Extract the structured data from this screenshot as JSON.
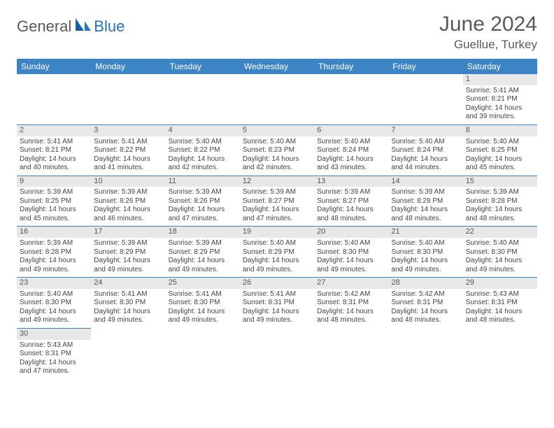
{
  "logo": {
    "text1": "General",
    "text2": "Blue"
  },
  "title": "June 2024",
  "location": "Guellue, Turkey",
  "colors": {
    "header_bg": "#3d84c4",
    "header_fg": "#ffffff",
    "daynum_bg": "#e8e8e8",
    "border": "#3d84c4",
    "logo_gray": "#585858",
    "logo_blue": "#2b6fac"
  },
  "weekdays": [
    "Sunday",
    "Monday",
    "Tuesday",
    "Wednesday",
    "Thursday",
    "Friday",
    "Saturday"
  ],
  "weeks": [
    [
      null,
      null,
      null,
      null,
      null,
      null,
      {
        "n": "1",
        "sr": "5:41 AM",
        "ss": "8:21 PM",
        "dl": "14 hours and 39 minutes."
      }
    ],
    [
      {
        "n": "2",
        "sr": "5:41 AM",
        "ss": "8:21 PM",
        "dl": "14 hours and 40 minutes."
      },
      {
        "n": "3",
        "sr": "5:41 AM",
        "ss": "8:22 PM",
        "dl": "14 hours and 41 minutes."
      },
      {
        "n": "4",
        "sr": "5:40 AM",
        "ss": "8:22 PM",
        "dl": "14 hours and 42 minutes."
      },
      {
        "n": "5",
        "sr": "5:40 AM",
        "ss": "8:23 PM",
        "dl": "14 hours and 42 minutes."
      },
      {
        "n": "6",
        "sr": "5:40 AM",
        "ss": "8:24 PM",
        "dl": "14 hours and 43 minutes."
      },
      {
        "n": "7",
        "sr": "5:40 AM",
        "ss": "8:24 PM",
        "dl": "14 hours and 44 minutes."
      },
      {
        "n": "8",
        "sr": "5:40 AM",
        "ss": "8:25 PM",
        "dl": "14 hours and 45 minutes."
      }
    ],
    [
      {
        "n": "9",
        "sr": "5:39 AM",
        "ss": "8:25 PM",
        "dl": "14 hours and 45 minutes."
      },
      {
        "n": "10",
        "sr": "5:39 AM",
        "ss": "8:26 PM",
        "dl": "14 hours and 46 minutes."
      },
      {
        "n": "11",
        "sr": "5:39 AM",
        "ss": "8:26 PM",
        "dl": "14 hours and 47 minutes."
      },
      {
        "n": "12",
        "sr": "5:39 AM",
        "ss": "8:27 PM",
        "dl": "14 hours and 47 minutes."
      },
      {
        "n": "13",
        "sr": "5:39 AM",
        "ss": "8:27 PM",
        "dl": "14 hours and 48 minutes."
      },
      {
        "n": "14",
        "sr": "5:39 AM",
        "ss": "8:28 PM",
        "dl": "14 hours and 48 minutes."
      },
      {
        "n": "15",
        "sr": "5:39 AM",
        "ss": "8:28 PM",
        "dl": "14 hours and 48 minutes."
      }
    ],
    [
      {
        "n": "16",
        "sr": "5:39 AM",
        "ss": "8:28 PM",
        "dl": "14 hours and 49 minutes."
      },
      {
        "n": "17",
        "sr": "5:39 AM",
        "ss": "8:29 PM",
        "dl": "14 hours and 49 minutes."
      },
      {
        "n": "18",
        "sr": "5:39 AM",
        "ss": "8:29 PM",
        "dl": "14 hours and 49 minutes."
      },
      {
        "n": "19",
        "sr": "5:40 AM",
        "ss": "8:29 PM",
        "dl": "14 hours and 49 minutes."
      },
      {
        "n": "20",
        "sr": "5:40 AM",
        "ss": "8:30 PM",
        "dl": "14 hours and 49 minutes."
      },
      {
        "n": "21",
        "sr": "5:40 AM",
        "ss": "8:30 PM",
        "dl": "14 hours and 49 minutes."
      },
      {
        "n": "22",
        "sr": "5:40 AM",
        "ss": "8:30 PM",
        "dl": "14 hours and 49 minutes."
      }
    ],
    [
      {
        "n": "23",
        "sr": "5:40 AM",
        "ss": "8:30 PM",
        "dl": "14 hours and 49 minutes."
      },
      {
        "n": "24",
        "sr": "5:41 AM",
        "ss": "8:30 PM",
        "dl": "14 hours and 49 minutes."
      },
      {
        "n": "25",
        "sr": "5:41 AM",
        "ss": "8:30 PM",
        "dl": "14 hours and 49 minutes."
      },
      {
        "n": "26",
        "sr": "5:41 AM",
        "ss": "8:31 PM",
        "dl": "14 hours and 49 minutes."
      },
      {
        "n": "27",
        "sr": "5:42 AM",
        "ss": "8:31 PM",
        "dl": "14 hours and 48 minutes."
      },
      {
        "n": "28",
        "sr": "5:42 AM",
        "ss": "8:31 PM",
        "dl": "14 hours and 48 minutes."
      },
      {
        "n": "29",
        "sr": "5:43 AM",
        "ss": "8:31 PM",
        "dl": "14 hours and 48 minutes."
      }
    ],
    [
      {
        "n": "30",
        "sr": "5:43 AM",
        "ss": "8:31 PM",
        "dl": "14 hours and 47 minutes."
      },
      null,
      null,
      null,
      null,
      null,
      null
    ]
  ],
  "labels": {
    "sunrise": "Sunrise:",
    "sunset": "Sunset:",
    "daylight": "Daylight:"
  }
}
